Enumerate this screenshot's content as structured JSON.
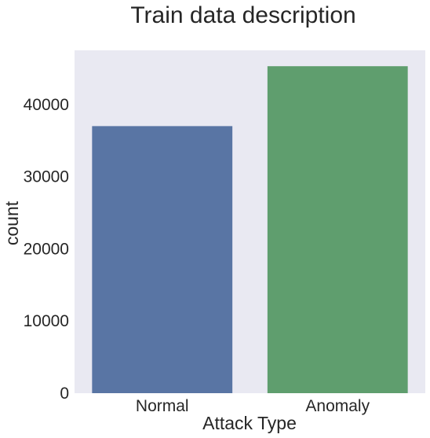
{
  "chart_data": {
    "type": "bar",
    "title": "Train data description",
    "xlabel": "Attack Type",
    "ylabel": "count",
    "categories": [
      "Normal",
      "Anomaly"
    ],
    "values": [
      37000,
      45300
    ],
    "colors": [
      "#5975a4",
      "#5f9e6e"
    ],
    "ylim": [
      0,
      47500
    ],
    "yticks": [
      0,
      10000,
      20000,
      30000,
      40000
    ],
    "ytick_labels": [
      "0",
      "10000",
      "20000",
      "30000",
      "40000"
    ],
    "grid": false,
    "background": "#e9e9f2"
  }
}
